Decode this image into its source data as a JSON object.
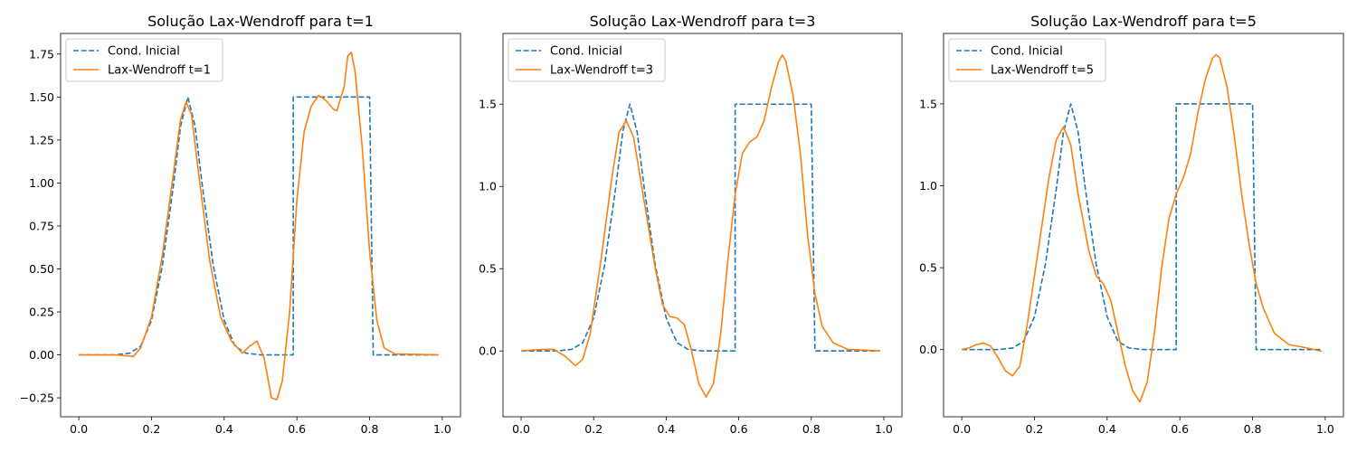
{
  "colors": {
    "initial": "#1f77b4",
    "lax": "#ff7f0e"
  },
  "chart_data": [
    {
      "type": "line",
      "title": "Solução Lax-Wendroff para t=1",
      "xlabel": "",
      "ylabel": "",
      "xlim": [
        -0.05,
        1.05
      ],
      "ylim": [
        -0.36,
        1.87
      ],
      "xticks": [
        0.0,
        0.2,
        0.4,
        0.6,
        0.8,
        1.0
      ],
      "xtick_labels": [
        "0.0",
        "0.2",
        "0.4",
        "0.6",
        "0.8",
        "1.0"
      ],
      "yticks": [
        -0.25,
        0,
        0.25,
        0.5,
        0.75,
        1.0,
        1.25,
        1.5,
        1.75
      ],
      "ytick_labels": [
        "−0.25",
        "0.00",
        "0.25",
        "0.50",
        "0.75",
        "1.00",
        "1.25",
        "1.50",
        "1.75"
      ],
      "legend": {
        "location": "top-left"
      },
      "series": [
        {
          "name": "Cond. Inicial",
          "style": "dashed",
          "points": [
            [
              0,
              0
            ],
            [
              0.1,
              0
            ],
            [
              0.14,
              0.01
            ],
            [
              0.17,
              0.05
            ],
            [
              0.2,
              0.2
            ],
            [
              0.23,
              0.52
            ],
            [
              0.26,
              0.98
            ],
            [
              0.28,
              1.33
            ],
            [
              0.3,
              1.5
            ],
            [
              0.32,
              1.33
            ],
            [
              0.34,
              0.98
            ],
            [
              0.37,
              0.52
            ],
            [
              0.4,
              0.2
            ],
            [
              0.43,
              0.05
            ],
            [
              0.46,
              0.01
            ],
            [
              0.5,
              0
            ],
            [
              0.59,
              0
            ],
            [
              0.59,
              1.5
            ],
            [
              0.8,
              1.5
            ],
            [
              0.81,
              0
            ],
            [
              0.99,
              0
            ]
          ]
        },
        {
          "name": "Lax-Wendroff t=1",
          "style": "solid",
          "points": [
            [
              0,
              0
            ],
            [
              0.1,
              0
            ],
            [
              0.13,
              -0.005
            ],
            [
              0.15,
              -0.01
            ],
            [
              0.17,
              0.04
            ],
            [
              0.2,
              0.22
            ],
            [
              0.23,
              0.58
            ],
            [
              0.26,
              1.05
            ],
            [
              0.28,
              1.37
            ],
            [
              0.295,
              1.47
            ],
            [
              0.31,
              1.4
            ],
            [
              0.33,
              1.05
            ],
            [
              0.36,
              0.55
            ],
            [
              0.39,
              0.22
            ],
            [
              0.42,
              0.08
            ],
            [
              0.45,
              0.01
            ],
            [
              0.47,
              0.05
            ],
            [
              0.49,
              0.08
            ],
            [
              0.51,
              -0.02
            ],
            [
              0.53,
              -0.25
            ],
            [
              0.545,
              -0.26
            ],
            [
              0.56,
              -0.15
            ],
            [
              0.58,
              0.25
            ],
            [
              0.6,
              0.9
            ],
            [
              0.62,
              1.3
            ],
            [
              0.64,
              1.45
            ],
            [
              0.66,
              1.51
            ],
            [
              0.68,
              1.48
            ],
            [
              0.7,
              1.43
            ],
            [
              0.71,
              1.42
            ],
            [
              0.73,
              1.56
            ],
            [
              0.74,
              1.74
            ],
            [
              0.75,
              1.76
            ],
            [
              0.76,
              1.65
            ],
            [
              0.78,
              1.2
            ],
            [
              0.8,
              0.6
            ],
            [
              0.82,
              0.2
            ],
            [
              0.84,
              0.04
            ],
            [
              0.87,
              0.005
            ],
            [
              0.99,
              0
            ]
          ]
        }
      ]
    },
    {
      "type": "line",
      "title": "Solução Lax-Wendroff para t=3",
      "xlabel": "",
      "ylabel": "",
      "xlim": [
        -0.05,
        1.05
      ],
      "ylim": [
        -0.4,
        1.93
      ],
      "xticks": [
        0.0,
        0.2,
        0.4,
        0.6,
        0.8,
        1.0
      ],
      "xtick_labels": [
        "0.0",
        "0.2",
        "0.4",
        "0.6",
        "0.8",
        "1.0"
      ],
      "yticks": [
        0,
        0.5,
        1.0,
        1.5
      ],
      "ytick_labels": [
        "0.0",
        "0.5",
        "1.0",
        "1.5"
      ],
      "legend": {
        "location": "top-left"
      },
      "series": [
        {
          "name": "Cond. Inicial",
          "style": "dashed",
          "points": [
            [
              0,
              0
            ],
            [
              0.1,
              0
            ],
            [
              0.14,
              0.01
            ],
            [
              0.17,
              0.05
            ],
            [
              0.2,
              0.2
            ],
            [
              0.23,
              0.52
            ],
            [
              0.26,
              0.98
            ],
            [
              0.28,
              1.33
            ],
            [
              0.3,
              1.5
            ],
            [
              0.32,
              1.33
            ],
            [
              0.34,
              0.98
            ],
            [
              0.37,
              0.52
            ],
            [
              0.4,
              0.2
            ],
            [
              0.43,
              0.05
            ],
            [
              0.46,
              0.01
            ],
            [
              0.5,
              0
            ],
            [
              0.59,
              0
            ],
            [
              0.59,
              1.5
            ],
            [
              0.8,
              1.5
            ],
            [
              0.81,
              0
            ],
            [
              0.99,
              0
            ]
          ]
        },
        {
          "name": "Lax-Wendroff t=3",
          "style": "solid",
          "points": [
            [
              0,
              0
            ],
            [
              0.03,
              0.005
            ],
            [
              0.06,
              0.01
            ],
            [
              0.09,
              0.01
            ],
            [
              0.12,
              -0.03
            ],
            [
              0.15,
              -0.09
            ],
            [
              0.17,
              -0.05
            ],
            [
              0.19,
              0.1
            ],
            [
              0.22,
              0.55
            ],
            [
              0.25,
              1.05
            ],
            [
              0.27,
              1.33
            ],
            [
              0.29,
              1.4
            ],
            [
              0.31,
              1.3
            ],
            [
              0.34,
              0.9
            ],
            [
              0.37,
              0.5
            ],
            [
              0.39,
              0.28
            ],
            [
              0.41,
              0.21
            ],
            [
              0.43,
              0.2
            ],
            [
              0.45,
              0.16
            ],
            [
              0.47,
              0.0
            ],
            [
              0.49,
              -0.2
            ],
            [
              0.51,
              -0.28
            ],
            [
              0.53,
              -0.2
            ],
            [
              0.55,
              0.1
            ],
            [
              0.57,
              0.55
            ],
            [
              0.59,
              0.95
            ],
            [
              0.61,
              1.2
            ],
            [
              0.63,
              1.27
            ],
            [
              0.65,
              1.3
            ],
            [
              0.67,
              1.4
            ],
            [
              0.69,
              1.6
            ],
            [
              0.71,
              1.76
            ],
            [
              0.72,
              1.8
            ],
            [
              0.73,
              1.76
            ],
            [
              0.75,
              1.55
            ],
            [
              0.77,
              1.2
            ],
            [
              0.79,
              0.7
            ],
            [
              0.81,
              0.35
            ],
            [
              0.83,
              0.15
            ],
            [
              0.86,
              0.05
            ],
            [
              0.9,
              0.01
            ],
            [
              0.99,
              0
            ]
          ]
        }
      ]
    },
    {
      "type": "line",
      "title": "Solução Lax-Wendroff para t=5",
      "xlabel": "",
      "ylabel": "",
      "xlim": [
        -0.05,
        1.05
      ],
      "ylim": [
        -0.41,
        1.93
      ],
      "xticks": [
        0.0,
        0.2,
        0.4,
        0.6,
        0.8,
        1.0
      ],
      "xtick_labels": [
        "0.0",
        "0.2",
        "0.4",
        "0.6",
        "0.8",
        "1.0"
      ],
      "yticks": [
        0,
        0.5,
        1.0,
        1.5
      ],
      "ytick_labels": [
        "0.0",
        "0.5",
        "1.0",
        "1.5"
      ],
      "legend": {
        "location": "top-left"
      },
      "series": [
        {
          "name": "Cond. Inicial",
          "style": "dashed",
          "points": [
            [
              0,
              0
            ],
            [
              0.1,
              0
            ],
            [
              0.14,
              0.01
            ],
            [
              0.17,
              0.05
            ],
            [
              0.2,
              0.2
            ],
            [
              0.23,
              0.52
            ],
            [
              0.26,
              0.98
            ],
            [
              0.28,
              1.33
            ],
            [
              0.3,
              1.5
            ],
            [
              0.32,
              1.33
            ],
            [
              0.34,
              0.98
            ],
            [
              0.37,
              0.52
            ],
            [
              0.4,
              0.2
            ],
            [
              0.43,
              0.05
            ],
            [
              0.46,
              0.01
            ],
            [
              0.5,
              0
            ],
            [
              0.59,
              0
            ],
            [
              0.59,
              1.5
            ],
            [
              0.8,
              1.5
            ],
            [
              0.81,
              0
            ],
            [
              0.99,
              0
            ]
          ]
        },
        {
          "name": "Lax-Wendroff t=5",
          "style": "solid",
          "points": [
            [
              0,
              0
            ],
            [
              0.02,
              0.01
            ],
            [
              0.04,
              0.03
            ],
            [
              0.06,
              0.04
            ],
            [
              0.08,
              0.02
            ],
            [
              0.1,
              -0.05
            ],
            [
              0.12,
              -0.13
            ],
            [
              0.14,
              -0.16
            ],
            [
              0.16,
              -0.1
            ],
            [
              0.18,
              0.15
            ],
            [
              0.21,
              0.6
            ],
            [
              0.24,
              1.05
            ],
            [
              0.26,
              1.28
            ],
            [
              0.28,
              1.36
            ],
            [
              0.3,
              1.25
            ],
            [
              0.32,
              0.95
            ],
            [
              0.35,
              0.6
            ],
            [
              0.37,
              0.45
            ],
            [
              0.39,
              0.4
            ],
            [
              0.41,
              0.3
            ],
            [
              0.43,
              0.1
            ],
            [
              0.45,
              -0.1
            ],
            [
              0.47,
              -0.25
            ],
            [
              0.49,
              -0.32
            ],
            [
              0.51,
              -0.2
            ],
            [
              0.53,
              0.1
            ],
            [
              0.55,
              0.5
            ],
            [
              0.57,
              0.8
            ],
            [
              0.59,
              0.95
            ],
            [
              0.61,
              1.05
            ],
            [
              0.63,
              1.2
            ],
            [
              0.65,
              1.45
            ],
            [
              0.67,
              1.65
            ],
            [
              0.69,
              1.78
            ],
            [
              0.7,
              1.8
            ],
            [
              0.71,
              1.78
            ],
            [
              0.73,
              1.6
            ],
            [
              0.75,
              1.3
            ],
            [
              0.77,
              0.95
            ],
            [
              0.79,
              0.65
            ],
            [
              0.81,
              0.4
            ],
            [
              0.83,
              0.25
            ],
            [
              0.86,
              0.1
            ],
            [
              0.9,
              0.03
            ],
            [
              0.95,
              0.01
            ],
            [
              0.99,
              -0.01
            ]
          ]
        }
      ]
    }
  ]
}
